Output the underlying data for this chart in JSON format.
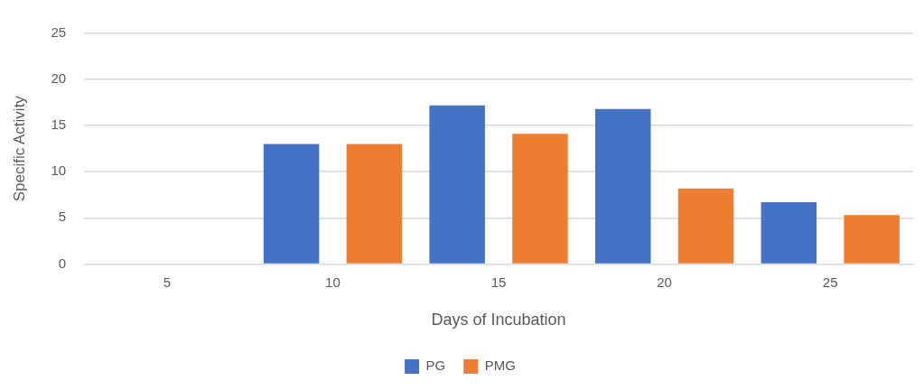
{
  "chart_data": {
    "type": "bar",
    "xlabel": "Days of Incubation",
    "ylabel": "Specific Activity",
    "categories": [
      "5",
      "10",
      "15",
      "20",
      "25"
    ],
    "series": [
      {
        "name": "PG",
        "color": "#4472c4",
        "values": [
          0,
          13,
          17.2,
          16.8,
          6.7
        ]
      },
      {
        "name": "PMG",
        "color": "#ed7d31",
        "values": [
          0,
          13,
          14.1,
          8.2,
          5.3
        ]
      }
    ],
    "ylim": [
      0,
      25
    ],
    "yticks": [
      0,
      5,
      10,
      15,
      20,
      25
    ],
    "grid": "y",
    "legend": "bottom"
  }
}
